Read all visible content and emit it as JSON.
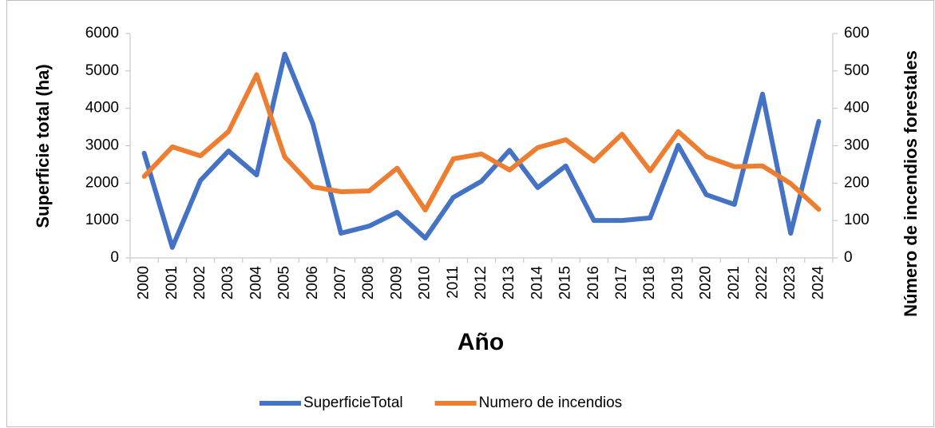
{
  "chart_data": {
    "type": "line",
    "x_label": "Año",
    "y_label": "Superficie total (ha)",
    "y2_label": "Número de incendios forestales",
    "categories": [
      "2000",
      "2001",
      "2002",
      "2003",
      "2004",
      "2005",
      "2006",
      "2007",
      "2008",
      "2009",
      "2010",
      "2011",
      "2012",
      "2013",
      "2014",
      "2015",
      "2016",
      "2017",
      "2018",
      "2019",
      "2020",
      "2021",
      "2022",
      "2023",
      "2024"
    ],
    "series": [
      {
        "name": "SuperficieTotal",
        "color": "#4472c4",
        "axis": "y",
        "values": [
          2800,
          280,
          2070,
          2860,
          2220,
          5450,
          3590,
          660,
          850,
          1220,
          530,
          1620,
          2050,
          2880,
          1880,
          2460,
          1000,
          1000,
          1070,
          3010,
          1690,
          1430,
          4380,
          660,
          3650
        ]
      },
      {
        "name": "Numero de incendios",
        "color": "#ed7d31",
        "axis": "y2",
        "values": [
          218,
          297,
          273,
          338,
          490,
          270,
          190,
          177,
          179,
          240,
          128,
          265,
          278,
          235,
          295,
          316,
          259,
          331,
          233,
          338,
          271,
          244,
          246,
          199,
          130
        ]
      }
    ],
    "ylim": [
      0,
      6000
    ],
    "yticks": [
      0,
      1000,
      2000,
      3000,
      4000,
      5000,
      6000
    ],
    "y2lim": [
      0,
      600
    ],
    "y2ticks": [
      0,
      100,
      200,
      300,
      400,
      500,
      600
    ],
    "legend": "bottom"
  }
}
